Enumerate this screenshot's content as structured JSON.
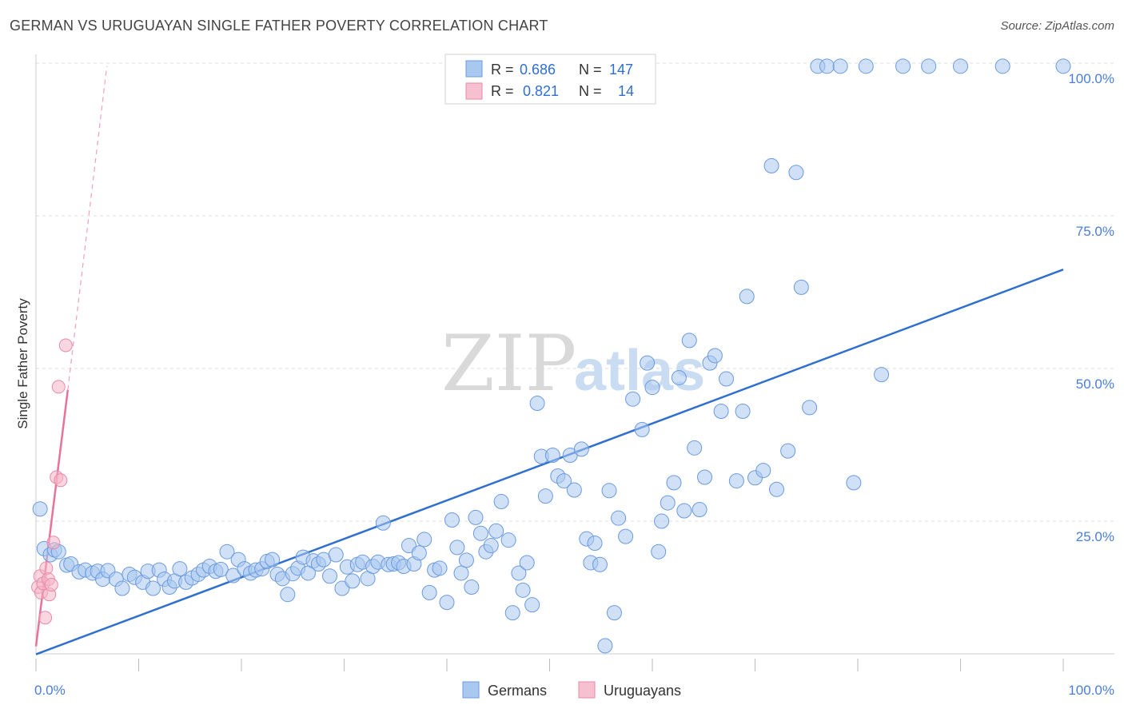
{
  "title": "GERMAN VS URUGUAYAN SINGLE FATHER POVERTY CORRELATION CHART",
  "source": "Source: ZipAtlas.com",
  "watermark": {
    "zip": "ZIP",
    "atlas": "atlas"
  },
  "colors": {
    "blue": "#4a86d8",
    "blue_fill": "#a9c8f0",
    "pink": "#e8729a",
    "pink_fill": "#f6b5c9",
    "grid": "#dddddd"
  },
  "legend_top": [
    {
      "r_label": "R =",
      "r_value": "0.686",
      "n_label": "N =",
      "n_value": "147"
    },
    {
      "r_label": "R =",
      "r_value": "0.821",
      "n_label": "N =",
      "n_value": "14"
    }
  ],
  "legend_bottom": [
    "Germans",
    "Uruguayans"
  ],
  "chart_data": {
    "type": "scatter",
    "title": "GERMAN VS URUGUAYAN SINGLE FATHER POVERTY CORRELATION CHART",
    "xlabel": "",
    "ylabel": "Single Father Poverty",
    "xlim": [
      0,
      100
    ],
    "ylim": [
      0,
      100
    ],
    "x_tick_labels": [
      "0.0%",
      "100.0%"
    ],
    "y_tick_labels": [
      "100.0%",
      "75.0%",
      "50.0%",
      "25.0%"
    ],
    "y_tick_values": [
      100,
      75,
      50,
      25
    ],
    "series": [
      {
        "name": "Germans",
        "color": "#4a86d8",
        "trend": {
          "x": [
            0,
            100
          ],
          "y": [
            3.2,
            66.2
          ]
        },
        "points": [
          [
            0.4,
            27.0
          ],
          [
            0.8,
            20.5
          ],
          [
            1.4,
            19.5
          ],
          [
            1.8,
            20.3
          ],
          [
            2.2,
            20.0
          ],
          [
            3.0,
            17.8
          ],
          [
            3.4,
            18.0
          ],
          [
            4.2,
            16.7
          ],
          [
            4.8,
            17.0
          ],
          [
            5.5,
            16.5
          ],
          [
            6.0,
            16.8
          ],
          [
            6.5,
            15.5
          ],
          [
            7.0,
            16.9
          ],
          [
            7.8,
            15.5
          ],
          [
            8.4,
            14.0
          ],
          [
            9.1,
            16.3
          ],
          [
            9.6,
            15.8
          ],
          [
            10.4,
            15.0
          ],
          [
            10.9,
            16.8
          ],
          [
            11.4,
            14.0
          ],
          [
            12.0,
            17.0
          ],
          [
            12.5,
            15.5
          ],
          [
            13.0,
            14.2
          ],
          [
            13.5,
            15.2
          ],
          [
            14.0,
            17.2
          ],
          [
            14.6,
            15.0
          ],
          [
            15.2,
            15.7
          ],
          [
            15.8,
            16.3
          ],
          [
            16.3,
            17.0
          ],
          [
            16.9,
            17.6
          ],
          [
            17.5,
            16.8
          ],
          [
            18.0,
            17.1
          ],
          [
            18.6,
            20.0
          ],
          [
            19.2,
            16.1
          ],
          [
            19.7,
            18.7
          ],
          [
            20.3,
            17.2
          ],
          [
            20.9,
            16.5
          ],
          [
            21.4,
            17.0
          ],
          [
            22.0,
            17.2
          ],
          [
            22.5,
            18.4
          ],
          [
            23.0,
            18.7
          ],
          [
            23.5,
            16.3
          ],
          [
            24.0,
            15.6
          ],
          [
            24.5,
            13.0
          ],
          [
            25.0,
            16.4
          ],
          [
            25.5,
            17.3
          ],
          [
            26.0,
            19.1
          ],
          [
            26.5,
            16.5
          ],
          [
            27.0,
            18.5
          ],
          [
            27.5,
            18.0
          ],
          [
            28.0,
            18.7
          ],
          [
            28.6,
            16.0
          ],
          [
            29.2,
            19.5
          ],
          [
            29.8,
            14.0
          ],
          [
            30.3,
            17.5
          ],
          [
            30.8,
            15.2
          ],
          [
            31.3,
            17.9
          ],
          [
            31.8,
            18.3
          ],
          [
            32.3,
            15.6
          ],
          [
            32.8,
            17.6
          ],
          [
            33.3,
            18.3
          ],
          [
            33.8,
            24.7
          ],
          [
            34.3,
            17.9
          ],
          [
            34.8,
            18.0
          ],
          [
            35.3,
            18.2
          ],
          [
            35.8,
            17.6
          ],
          [
            36.3,
            21.0
          ],
          [
            36.8,
            18.0
          ],
          [
            37.3,
            19.8
          ],
          [
            37.8,
            22.0
          ],
          [
            38.3,
            13.3
          ],
          [
            38.8,
            17.0
          ],
          [
            39.3,
            17.3
          ],
          [
            40.0,
            11.7
          ],
          [
            40.5,
            25.2
          ],
          [
            41.0,
            20.7
          ],
          [
            41.4,
            16.5
          ],
          [
            41.9,
            18.6
          ],
          [
            42.4,
            14.2
          ],
          [
            42.8,
            25.6
          ],
          [
            43.3,
            23.0
          ],
          [
            43.8,
            20.0
          ],
          [
            44.3,
            21.0
          ],
          [
            44.8,
            23.4
          ],
          [
            45.3,
            28.2
          ],
          [
            46.0,
            21.9
          ],
          [
            46.4,
            10.0
          ],
          [
            47.0,
            16.5
          ],
          [
            47.4,
            13.7
          ],
          [
            47.8,
            18.2
          ],
          [
            48.3,
            11.3
          ],
          [
            48.8,
            44.3
          ],
          [
            49.2,
            35.6
          ],
          [
            49.6,
            29.1
          ],
          [
            50.3,
            35.8
          ],
          [
            50.8,
            32.4
          ],
          [
            51.4,
            31.6
          ],
          [
            52.0,
            35.8
          ],
          [
            52.4,
            30.1
          ],
          [
            53.1,
            36.8
          ],
          [
            53.6,
            22.1
          ],
          [
            54.0,
            18.2
          ],
          [
            54.4,
            21.4
          ],
          [
            54.9,
            17.9
          ],
          [
            55.4,
            4.6
          ],
          [
            55.8,
            30.0
          ],
          [
            56.3,
            10.0
          ],
          [
            56.7,
            25.5
          ],
          [
            57.4,
            22.5
          ],
          [
            58.1,
            45.0
          ],
          [
            59.0,
            40.0
          ],
          [
            59.5,
            50.9
          ],
          [
            60.0,
            46.9
          ],
          [
            60.6,
            20.0
          ],
          [
            60.9,
            25.0
          ],
          [
            61.5,
            28.0
          ],
          [
            62.1,
            31.3
          ],
          [
            62.6,
            48.5
          ],
          [
            63.1,
            26.7
          ],
          [
            63.6,
            54.6
          ],
          [
            64.1,
            37.0
          ],
          [
            64.6,
            26.9
          ],
          [
            65.1,
            32.2
          ],
          [
            65.6,
            50.9
          ],
          [
            66.1,
            52.1
          ],
          [
            66.7,
            43.0
          ],
          [
            67.2,
            48.3
          ],
          [
            68.2,
            31.6
          ],
          [
            68.8,
            43.0
          ],
          [
            69.2,
            61.8
          ],
          [
            70.0,
            32.1
          ],
          [
            70.8,
            33.3
          ],
          [
            71.6,
            83.2
          ],
          [
            72.1,
            30.2
          ],
          [
            73.2,
            36.5
          ],
          [
            74.0,
            82.1
          ],
          [
            74.5,
            63.3
          ],
          [
            75.3,
            43.6
          ],
          [
            76.1,
            99.5
          ],
          [
            77.0,
            99.5
          ],
          [
            78.3,
            99.5
          ],
          [
            79.6,
            31.3
          ],
          [
            80.8,
            99.5
          ],
          [
            82.3,
            49.0
          ],
          [
            84.4,
            99.5
          ],
          [
            86.9,
            99.5
          ],
          [
            90.0,
            99.5
          ],
          [
            94.1,
            99.5
          ],
          [
            100.0,
            99.5
          ]
        ]
      },
      {
        "name": "Uruguayans",
        "color": "#e8729a",
        "trend": {
          "x": [
            0,
            3.1
          ],
          "y": [
            4.5,
            46.5
          ]
        },
        "trend_dashed": {
          "x": [
            3.1,
            6.9
          ],
          "y": [
            46.5,
            99.5
          ]
        },
        "points": [
          [
            0.2,
            14.2
          ],
          [
            0.4,
            16.0
          ],
          [
            0.5,
            13.3
          ],
          [
            0.7,
            14.8
          ],
          [
            0.9,
            9.2
          ],
          [
            1.0,
            17.3
          ],
          [
            1.2,
            15.5
          ],
          [
            1.3,
            13.0
          ],
          [
            1.5,
            14.6
          ],
          [
            1.7,
            21.5
          ],
          [
            2.0,
            32.2
          ],
          [
            2.2,
            47.0
          ],
          [
            2.4,
            31.7
          ],
          [
            2.9,
            53.8
          ]
        ]
      }
    ]
  }
}
